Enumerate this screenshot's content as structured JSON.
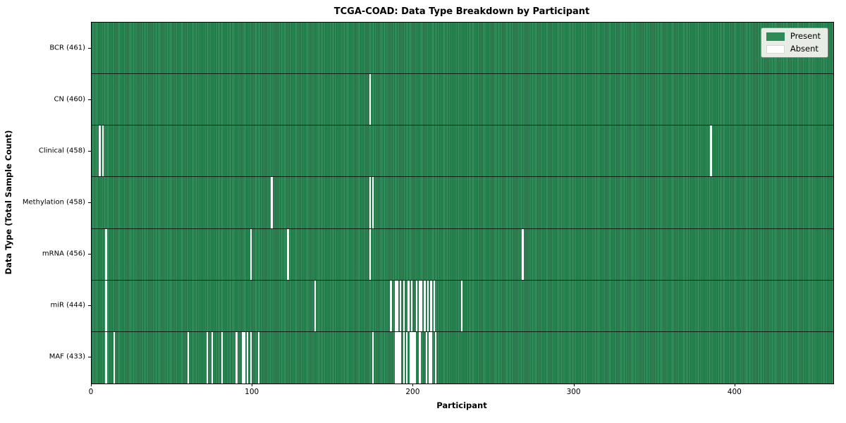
{
  "chart_data": {
    "type": "heatmap",
    "title": "TCGA-COAD: Data Type Breakdown by Participant",
    "xlabel": "Participant",
    "ylabel": "Data Type (Total Sample Count)",
    "x_ticks": [
      0,
      100,
      200,
      300,
      400
    ],
    "xlim": [
      0,
      461
    ],
    "n_participants": 461,
    "grid": false,
    "legend_position": "upper right",
    "colors": {
      "present": "#2e8b57",
      "absent": "#ffffff",
      "cell_edge": "rgba(8,34,20,0.5)",
      "row_separator": "rgba(0,0,0,0.75)",
      "legend_bg": "#e7ece4"
    },
    "legend": [
      {
        "label": "Present",
        "color": "#2e8b57"
      },
      {
        "label": "Absent",
        "color": "#ffffff"
      }
    ],
    "rows": [
      {
        "name": "BCR",
        "label": "BCR (461)",
        "count": 461,
        "absent": []
      },
      {
        "name": "CN",
        "label": "CN (460)",
        "count": 460,
        "absent": [
          173
        ]
      },
      {
        "name": "Clinical",
        "label": "Clinical (458)",
        "count": 458,
        "absent": [
          5,
          7,
          385
        ]
      },
      {
        "name": "Methylation",
        "label": "Methylation (458)",
        "count": 458,
        "absent": [
          112,
          173,
          175
        ]
      },
      {
        "name": "mRNA",
        "label": "mRNA (456)",
        "count": 456,
        "absent": [
          9,
          99,
          122,
          173,
          268
        ]
      },
      {
        "name": "miR",
        "label": "miR (444)",
        "count": 444,
        "absent": [
          9,
          139,
          186,
          189,
          190,
          192,
          194,
          197,
          199,
          202,
          204,
          205,
          207,
          209,
          211,
          213,
          230
        ]
      },
      {
        "name": "MAF",
        "label": "MAF (433)",
        "count": 433,
        "absent": [
          9,
          14,
          60,
          72,
          75,
          81,
          90,
          94,
          95,
          97,
          99,
          104,
          175,
          189,
          190,
          191,
          192,
          194,
          196,
          198,
          199,
          200,
          201,
          204,
          208,
          210,
          211,
          214
        ]
      }
    ]
  }
}
